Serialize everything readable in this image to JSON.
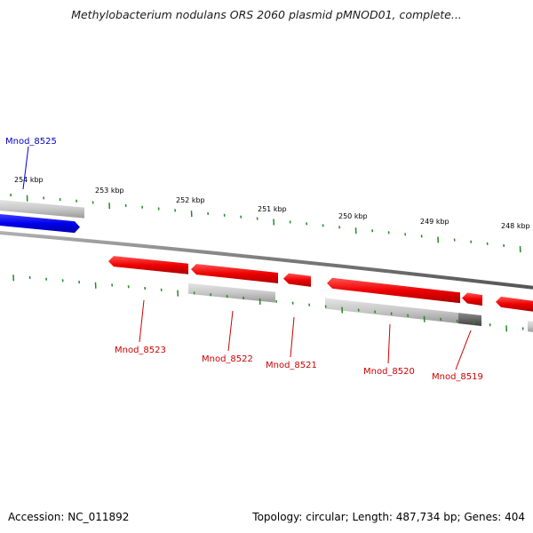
{
  "header": {
    "title": "Methylobacterium nodulans ORS 2060 plasmid pMNOD01, complete..."
  },
  "footer": {
    "accession": "Accession: NC_011892",
    "stats": "Topology: circular; Length: 487,734 bp; Genes: 404"
  },
  "colors": {
    "forward_gene": "#0000ee",
    "reverse_gene": "#ee0000",
    "feature_light": "#c8c8c8",
    "feature_dark": "#666666",
    "backbone": "#888888",
    "tick": "#228b22",
    "label_blue": "#0000cc",
    "label_red": "#cc0000"
  },
  "scale": {
    "ticks": [
      {
        "label": "254 kbp"
      },
      {
        "label": "253 kbp"
      },
      {
        "label": "252 kbp"
      },
      {
        "label": "251 kbp"
      },
      {
        "label": "250 kbp"
      },
      {
        "label": "249 kbp"
      },
      {
        "label": "248 kbp"
      }
    ]
  },
  "genes": [
    {
      "name": "Mnod_8525",
      "strand": "forward"
    },
    {
      "name": "Mnod_8523",
      "strand": "reverse"
    },
    {
      "name": "Mnod_8522",
      "strand": "reverse"
    },
    {
      "name": "Mnod_8521",
      "strand": "reverse"
    },
    {
      "name": "Mnod_8520",
      "strand": "reverse"
    },
    {
      "name": "Mnod_8519",
      "strand": "reverse"
    }
  ]
}
